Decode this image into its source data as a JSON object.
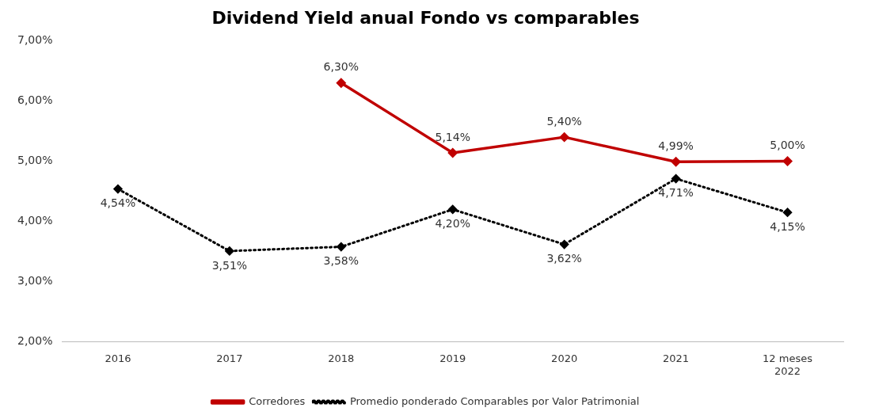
{
  "chart_data": {
    "type": "line",
    "title": "Dividend Yield anual Fondo vs comparables",
    "categories": [
      "2016",
      "2017",
      "2018",
      "2019",
      "2020",
      "2021",
      "12 meses 2022"
    ],
    "series": [
      {
        "name": "Corredores",
        "color": "#c00000",
        "line_style": "solid",
        "values": [
          null,
          null,
          6.3,
          5.14,
          5.4,
          4.99,
          5.0
        ],
        "value_labels": [
          null,
          null,
          "6,30%",
          "5,14%",
          "5,40%",
          "4,99%",
          "5,00%"
        ]
      },
      {
        "name": "Promedio ponderado Comparables por Valor Patrimonial",
        "color": "#000000",
        "line_style": "dotted",
        "values": [
          4.54,
          3.51,
          3.58,
          4.2,
          3.62,
          4.71,
          4.15
        ],
        "value_labels": [
          "4,54%",
          "3,51%",
          "3,58%",
          "4,20%",
          "3,62%",
          "4,71%",
          "4,15%"
        ]
      }
    ],
    "ylim": [
      2,
      7
    ],
    "yticks": [
      {
        "value": 2,
        "label": "2,00%"
      },
      {
        "value": 3,
        "label": "3,00%"
      },
      {
        "value": 4,
        "label": "4,00%"
      },
      {
        "value": 5,
        "label": "5,00%"
      },
      {
        "value": 6,
        "label": "6,00%"
      },
      {
        "value": 7,
        "label": "7,00%"
      }
    ],
    "grid": false,
    "legend": "bottom",
    "marker": "diamond"
  }
}
